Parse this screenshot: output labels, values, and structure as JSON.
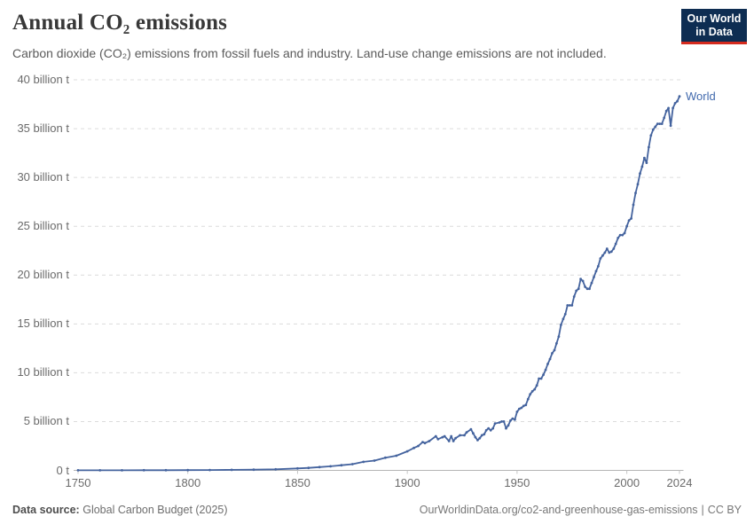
{
  "header": {
    "title": "Annual CO₂ emissions",
    "subtitle": "Carbon dioxide (CO₂) emissions from fossil fuels and industry. Land-use change emissions are not included.",
    "logo": {
      "line1": "Our World",
      "line2": "in Data",
      "bg_color": "#0e2d52",
      "accent_color": "#d52b1e"
    }
  },
  "footer": {
    "datasource_label": "Data source:",
    "datasource_value": "Global Carbon Budget (2025)",
    "link": "OurWorldinData.org/co2-and-greenhouse-gas-emissions",
    "separator": "|",
    "license": "CC BY"
  },
  "chart_data": {
    "type": "line",
    "title": "Annual CO₂ emissions",
    "xlabel": "",
    "ylabel": "",
    "unit": "billion tonnes of CO₂",
    "xlim": [
      1750,
      2024
    ],
    "ylim": [
      0,
      40
    ],
    "grid": "horizontal dashed",
    "legend_position": "end-of-line label",
    "x_ticks": [
      {
        "value": 1750,
        "label": "1750"
      },
      {
        "value": 1800,
        "label": "1800"
      },
      {
        "value": 1850,
        "label": "1850"
      },
      {
        "value": 1900,
        "label": "1900"
      },
      {
        "value": 1950,
        "label": "1950"
      },
      {
        "value": 2000,
        "label": "2000"
      },
      {
        "value": 2024,
        "label": "2024"
      }
    ],
    "y_ticks": [
      {
        "value": 0,
        "label": "0 t"
      },
      {
        "value": 5,
        "label": "5 billion t"
      },
      {
        "value": 10,
        "label": "10 billion t"
      },
      {
        "value": 15,
        "label": "15 billion t"
      },
      {
        "value": 20,
        "label": "20 billion t"
      },
      {
        "value": 25,
        "label": "25 billion t"
      },
      {
        "value": 30,
        "label": "30 billion t"
      },
      {
        "value": 35,
        "label": "35 billion t"
      },
      {
        "value": 40,
        "label": "40 billion t"
      }
    ],
    "series": [
      {
        "name": "World",
        "color": "#44639e",
        "label_color": "#4169ad",
        "points": [
          [
            1750,
            0.01
          ],
          [
            1760,
            0.011
          ],
          [
            1770,
            0.013
          ],
          [
            1780,
            0.016
          ],
          [
            1790,
            0.021
          ],
          [
            1800,
            0.03
          ],
          [
            1810,
            0.04
          ],
          [
            1820,
            0.05
          ],
          [
            1830,
            0.07
          ],
          [
            1840,
            0.11
          ],
          [
            1850,
            0.2
          ],
          [
            1855,
            0.25
          ],
          [
            1860,
            0.34
          ],
          [
            1865,
            0.42
          ],
          [
            1870,
            0.53
          ],
          [
            1875,
            0.64
          ],
          [
            1880,
            0.87
          ],
          [
            1885,
            1.0
          ],
          [
            1890,
            1.3
          ],
          [
            1895,
            1.5
          ],
          [
            1900,
            1.95
          ],
          [
            1903,
            2.3
          ],
          [
            1905,
            2.5
          ],
          [
            1907,
            2.9
          ],
          [
            1908,
            2.8
          ],
          [
            1910,
            3.0
          ],
          [
            1913,
            3.5
          ],
          [
            1914,
            3.2
          ],
          [
            1916,
            3.4
          ],
          [
            1917,
            3.5
          ],
          [
            1919,
            3.0
          ],
          [
            1920,
            3.5
          ],
          [
            1921,
            3.0
          ],
          [
            1922,
            3.3
          ],
          [
            1924,
            3.6
          ],
          [
            1926,
            3.6
          ],
          [
            1927,
            3.9
          ],
          [
            1929,
            4.2
          ],
          [
            1930,
            3.8
          ],
          [
            1931,
            3.4
          ],
          [
            1932,
            3.1
          ],
          [
            1933,
            3.3
          ],
          [
            1934,
            3.6
          ],
          [
            1935,
            3.7
          ],
          [
            1936,
            4.1
          ],
          [
            1937,
            4.3
          ],
          [
            1938,
            4.1
          ],
          [
            1939,
            4.3
          ],
          [
            1940,
            4.8
          ],
          [
            1942,
            4.9
          ],
          [
            1943,
            5.0
          ],
          [
            1944,
            5.0
          ],
          [
            1945,
            4.3
          ],
          [
            1946,
            4.6
          ],
          [
            1947,
            5.1
          ],
          [
            1948,
            5.3
          ],
          [
            1949,
            5.2
          ],
          [
            1950,
            6.0
          ],
          [
            1951,
            6.3
          ],
          [
            1952,
            6.4
          ],
          [
            1953,
            6.6
          ],
          [
            1954,
            6.7
          ],
          [
            1955,
            7.3
          ],
          [
            1956,
            7.8
          ],
          [
            1957,
            8.1
          ],
          [
            1958,
            8.3
          ],
          [
            1959,
            8.7
          ],
          [
            1960,
            9.4
          ],
          [
            1961,
            9.4
          ],
          [
            1962,
            9.8
          ],
          [
            1963,
            10.3
          ],
          [
            1964,
            10.9
          ],
          [
            1965,
            11.4
          ],
          [
            1966,
            12.0
          ],
          [
            1967,
            12.3
          ],
          [
            1968,
            13.0
          ],
          [
            1969,
            13.7
          ],
          [
            1970,
            14.9
          ],
          [
            1971,
            15.5
          ],
          [
            1972,
            16.0
          ],
          [
            1973,
            16.9
          ],
          [
            1974,
            16.9
          ],
          [
            1975,
            16.9
          ],
          [
            1976,
            17.8
          ],
          [
            1977,
            18.4
          ],
          [
            1978,
            18.6
          ],
          [
            1979,
            19.6
          ],
          [
            1980,
            19.4
          ],
          [
            1981,
            18.8
          ],
          [
            1982,
            18.6
          ],
          [
            1983,
            18.6
          ],
          [
            1984,
            19.2
          ],
          [
            1985,
            19.8
          ],
          [
            1986,
            20.4
          ],
          [
            1987,
            20.9
          ],
          [
            1988,
            21.7
          ],
          [
            1989,
            22.0
          ],
          [
            1990,
            22.3
          ],
          [
            1991,
            22.7
          ],
          [
            1992,
            22.3
          ],
          [
            1993,
            22.4
          ],
          [
            1994,
            22.7
          ],
          [
            1995,
            23.2
          ],
          [
            1996,
            23.8
          ],
          [
            1997,
            24.1
          ],
          [
            1998,
            24.1
          ],
          [
            1999,
            24.3
          ],
          [
            2000,
            25.0
          ],
          [
            2001,
            25.6
          ],
          [
            2002,
            25.8
          ],
          [
            2003,
            27.2
          ],
          [
            2004,
            28.4
          ],
          [
            2005,
            29.3
          ],
          [
            2006,
            30.4
          ],
          [
            2007,
            31.1
          ],
          [
            2008,
            32.0
          ],
          [
            2009,
            31.5
          ],
          [
            2010,
            33.1
          ],
          [
            2011,
            34.3
          ],
          [
            2012,
            34.9
          ],
          [
            2013,
            35.2
          ],
          [
            2014,
            35.5
          ],
          [
            2015,
            35.5
          ],
          [
            2016,
            35.5
          ],
          [
            2017,
            36.1
          ],
          [
            2018,
            36.8
          ],
          [
            2019,
            37.1
          ],
          [
            2020,
            35.3
          ],
          [
            2021,
            37.1
          ],
          [
            2022,
            37.6
          ],
          [
            2023,
            37.8
          ],
          [
            2024,
            38.3
          ]
        ]
      }
    ]
  }
}
